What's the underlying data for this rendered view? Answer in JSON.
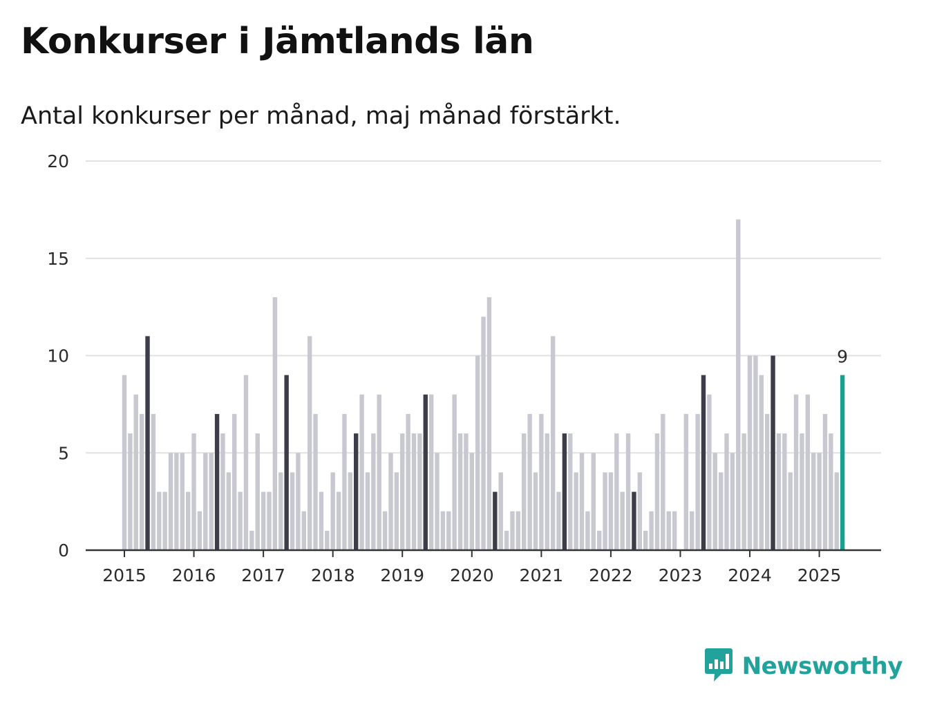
{
  "title": "Konkurser i Jämtlands län",
  "subtitle": "Antal konkurser per månad, maj månad förstärkt.",
  "brand": {
    "name": "Newsworthy",
    "icon": "newsworthy-logo-icon"
  },
  "colors": {
    "bar": "#c8c8d0",
    "highlight": "#3d3d49",
    "latest": "#1b9e8f",
    "grid": "#e1e1e4",
    "axis": "#333333",
    "brand": "#21a29a"
  },
  "chart_data": {
    "type": "bar",
    "start": "2015-01",
    "highlight_month": "May",
    "values": [
      9,
      6,
      8,
      7,
      11,
      7,
      3,
      3,
      5,
      5,
      5,
      3,
      6,
      2,
      5,
      5,
      7,
      6,
      4,
      7,
      3,
      9,
      1,
      6,
      3,
      3,
      13,
      4,
      9,
      4,
      5,
      2,
      11,
      7,
      3,
      1,
      4,
      3,
      7,
      4,
      6,
      8,
      4,
      6,
      8,
      2,
      5,
      4,
      6,
      7,
      6,
      6,
      8,
      8,
      5,
      2,
      2,
      8,
      6,
      6,
      5,
      10,
      12,
      13,
      3,
      4,
      1,
      2,
      2,
      6,
      7,
      4,
      7,
      6,
      11,
      3,
      6,
      6,
      4,
      5,
      2,
      5,
      1,
      4,
      4,
      6,
      3,
      6,
      3,
      4,
      1,
      2,
      6,
      7,
      2,
      2,
      0,
      7,
      2,
      7,
      9,
      8,
      5,
      4,
      6,
      5,
      17,
      6,
      10,
      10,
      9,
      7,
      10,
      6,
      6,
      4,
      8,
      6,
      8,
      5,
      5,
      7,
      6,
      4,
      9
    ],
    "x_tick_labels": [
      "2015",
      "2016",
      "2017",
      "2018",
      "2019",
      "2020",
      "2021",
      "2022",
      "2023",
      "2024",
      "2025"
    ],
    "ylim": [
      0,
      20
    ],
    "y_ticks": [
      0,
      5,
      10,
      15,
      20
    ],
    "last_value_label": "9",
    "grid": true,
    "legend": false
  }
}
